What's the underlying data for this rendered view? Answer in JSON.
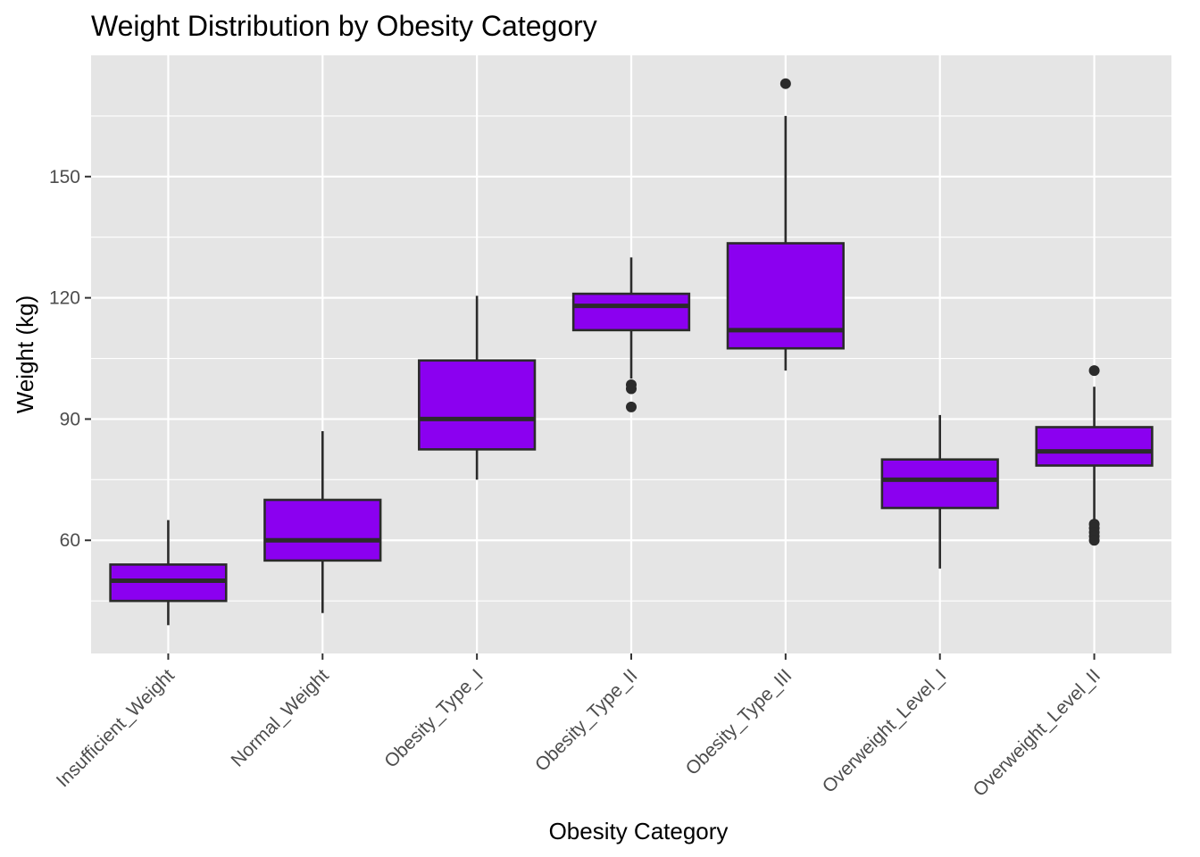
{
  "chart_data": {
    "type": "box",
    "title": "Weight Distribution by Obesity Category",
    "xlabel": "Obesity Category",
    "ylabel": "Weight (kg)",
    "ylim": [
      32,
      180
    ],
    "yticks": [
      60,
      90,
      120,
      150
    ],
    "grid": true,
    "categories": [
      "Insufficient_Weight",
      "Normal_Weight",
      "Obesity_Type_I",
      "Obesity_Type_II",
      "Obesity_Type_III",
      "Overweight_Level_I",
      "Overweight_Level_II"
    ],
    "boxes": [
      {
        "category": "Insufficient_Weight",
        "min": 39,
        "q1": 45,
        "median": 50,
        "q3": 54,
        "max": 65,
        "outliers": []
      },
      {
        "category": "Normal_Weight",
        "min": 42,
        "q1": 55,
        "median": 60,
        "q3": 70,
        "max": 87,
        "outliers": []
      },
      {
        "category": "Obesity_Type_I",
        "min": 75,
        "q1": 82.5,
        "median": 90,
        "q3": 104.5,
        "max": 120.5,
        "outliers": []
      },
      {
        "category": "Obesity_Type_II",
        "min": 100,
        "q1": 112,
        "median": 118,
        "q3": 121,
        "max": 130,
        "outliers": [
          98.5,
          97.5,
          93
        ]
      },
      {
        "category": "Obesity_Type_III",
        "min": 102,
        "q1": 107.5,
        "median": 112,
        "q3": 133.5,
        "max": 165,
        "outliers": [
          173
        ]
      },
      {
        "category": "Overweight_Level_I",
        "min": 53,
        "q1": 68,
        "median": 75,
        "q3": 80,
        "max": 91,
        "outliers": []
      },
      {
        "category": "Overweight_Level_II",
        "min": 65,
        "q1": 78.5,
        "median": 82,
        "q3": 88,
        "max": 98,
        "outliers": [
          102,
          64,
          63,
          62,
          61,
          60
        ]
      }
    ],
    "colors": {
      "panel": "#e5e5e5",
      "grid_major": "#ffffff",
      "box_fill": "#8b00f0",
      "box_line": "#2b2b2b",
      "tick_text": "#4d4d4d",
      "text": "#000000"
    }
  }
}
